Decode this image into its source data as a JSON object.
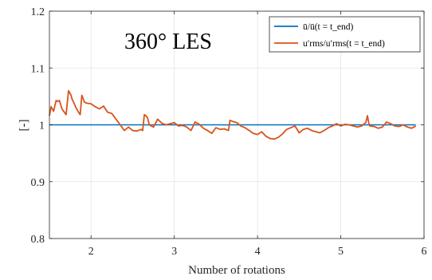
{
  "chart_data": {
    "type": "line",
    "annotation": "360° LES",
    "xlabel": "Number of rotations",
    "ylabel": "[-]",
    "xlim": [
      1.5,
      6
    ],
    "ylim": [
      0.8,
      1.2
    ],
    "xticks": [
      2,
      3,
      4,
      5,
      6
    ],
    "xtick_labels": [
      "2",
      "3",
      "4",
      "5",
      "6"
    ],
    "yticks": [
      0.8,
      0.9,
      1.0,
      1.1,
      1.2
    ],
    "ytick_labels": [
      "0.8",
      "0.9",
      "1",
      "1.1",
      "1.2"
    ],
    "grid": true,
    "legend_position": "top-right",
    "series": [
      {
        "name": "ū/ū(t = t_end)",
        "color": "#0072BD",
        "x": [
          1.5,
          5.9
        ],
        "y": [
          1.0,
          1.0
        ]
      },
      {
        "name": "u′rms/u′rms(t = t_end)",
        "color": "#D95319",
        "x": [
          1.5,
          1.52,
          1.55,
          1.58,
          1.6,
          1.62,
          1.65,
          1.7,
          1.73,
          1.76,
          1.77,
          1.79,
          1.82,
          1.85,
          1.87,
          1.89,
          1.9,
          1.92,
          1.95,
          2.0,
          2.05,
          2.1,
          2.15,
          2.2,
          2.25,
          2.3,
          2.35,
          2.4,
          2.45,
          2.5,
          2.55,
          2.6,
          2.62,
          2.64,
          2.66,
          2.68,
          2.7,
          2.75,
          2.8,
          2.85,
          2.9,
          2.95,
          3.0,
          3.05,
          3.1,
          3.15,
          3.2,
          3.25,
          3.3,
          3.35,
          3.4,
          3.45,
          3.5,
          3.55,
          3.6,
          3.65,
          3.67,
          3.7,
          3.75,
          3.8,
          3.85,
          3.9,
          3.95,
          4.0,
          4.05,
          4.1,
          4.15,
          4.2,
          4.25,
          4.3,
          4.35,
          4.4,
          4.45,
          4.5,
          4.55,
          4.6,
          4.65,
          4.7,
          4.75,
          4.8,
          4.85,
          4.9,
          4.95,
          5.0,
          5.05,
          5.1,
          5.15,
          5.2,
          5.25,
          5.3,
          5.32,
          5.34,
          5.35,
          5.4,
          5.45,
          5.5,
          5.55,
          5.6,
          5.65,
          5.7,
          5.75,
          5.8,
          5.85,
          5.9
        ],
        "y": [
          1.016,
          1.032,
          1.024,
          1.043,
          1.041,
          1.043,
          1.028,
          1.018,
          1.06,
          1.052,
          1.046,
          1.04,
          1.03,
          1.022,
          1.018,
          1.052,
          1.048,
          1.04,
          1.038,
          1.037,
          1.032,
          1.028,
          1.033,
          1.022,
          1.02,
          1.01,
          1.0,
          0.99,
          0.996,
          0.99,
          0.989,
          0.992,
          0.99,
          1.018,
          1.016,
          1.012,
          1.0,
          0.996,
          1.01,
          1.003,
          1.0,
          1.002,
          1.004,
          0.998,
          0.999,
          0.996,
          0.99,
          1.005,
          1.001,
          0.994,
          0.99,
          0.985,
          0.995,
          0.992,
          0.993,
          0.99,
          1.008,
          1.006,
          1.004,
          0.998,
          0.995,
          0.99,
          0.985,
          0.983,
          0.988,
          0.98,
          0.976,
          0.975,
          0.978,
          0.984,
          0.992,
          0.995,
          0.998,
          0.986,
          0.992,
          0.994,
          0.99,
          0.988,
          0.986,
          0.99,
          0.995,
          0.998,
          1.002,
          0.998,
          1.001,
          1.0,
          0.998,
          0.996,
          0.998,
          1.004,
          1.016,
          1.0,
          0.998,
          0.997,
          0.994,
          0.996,
          1.005,
          1.002,
          0.998,
          0.997,
          1.0,
          0.996,
          0.994,
          0.998
        ]
      }
    ]
  }
}
